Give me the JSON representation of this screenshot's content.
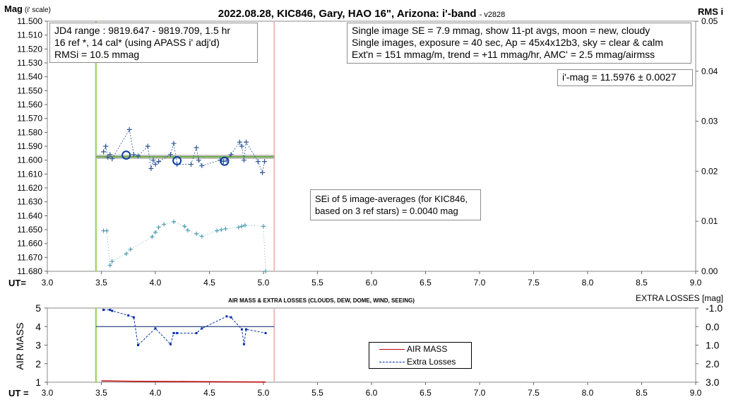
{
  "chart_data": [
    {
      "type": "scatter",
      "title": "2022.08.28, KIC846, Gary, HAO 16\", Arizona: i'-band",
      "title_suffix": "- v2828",
      "ylabel": "Mag",
      "ylabel_suffix": "(i' scale)",
      "y2label": "RMS i",
      "xlabel": "UT=",
      "xlim": [
        3.0,
        9.0
      ],
      "xticks": [
        "3.0",
        "3.5",
        "4.0",
        "4.5",
        "5.0",
        "5.5",
        "6.0",
        "6.5",
        "7.0",
        "7.5",
        "8.0",
        "8.5",
        "9.0"
      ],
      "ylim": [
        11.68,
        11.5
      ],
      "yticks": [
        "11.500",
        "11.510",
        "11.520",
        "11.530",
        "11.540",
        "11.550",
        "11.560",
        "11.570",
        "11.580",
        "11.590",
        "11.600",
        "11.610",
        "11.620",
        "11.630",
        "11.640",
        "11.650",
        "11.660",
        "11.670",
        "11.680"
      ],
      "y2lim": [
        0.0,
        0.05
      ],
      "y2ticks": [
        "0.05",
        "0.04",
        "0.03",
        "0.02",
        "0.01",
        "0.00"
      ],
      "vlines": [
        {
          "x": 3.45,
          "color": "#92d050"
        },
        {
          "x": 5.1,
          "color": "#f4b6b6"
        }
      ],
      "fit_line": {
        "x": [
          3.45,
          5.1
        ],
        "y": 11.5976,
        "color": "#70ad47",
        "shadow": "#c0c0c0"
      },
      "series": [
        {
          "role": "single",
          "color": "#2f5597",
          "points": [
            [
              3.52,
              11.594
            ],
            [
              3.54,
              11.59
            ],
            [
              3.56,
              11.598
            ],
            [
              3.58,
              11.596
            ],
            [
              3.6,
              11.599
            ],
            [
              3.76,
              11.578
            ],
            [
              3.8,
              11.596
            ],
            [
              3.84,
              11.597
            ],
            [
              3.93,
              11.59
            ],
            [
              3.96,
              11.606
            ],
            [
              3.98,
              11.6
            ],
            [
              4.0,
              11.603
            ],
            [
              4.03,
              11.601
            ],
            [
              4.14,
              11.596
            ],
            [
              4.17,
              11.588
            ],
            [
              4.2,
              11.603
            ],
            [
              4.33,
              11.603
            ],
            [
              4.38,
              11.591
            ],
            [
              4.4,
              11.6
            ],
            [
              4.43,
              11.604
            ],
            [
              4.6,
              11.6
            ],
            [
              4.63,
              11.601
            ],
            [
              4.66,
              11.6
            ],
            [
              4.7,
              11.596
            ],
            [
              4.78,
              11.587
            ],
            [
              4.8,
              11.59
            ],
            [
              4.82,
              11.6
            ],
            [
              4.84,
              11.587
            ],
            [
              4.95,
              11.601
            ],
            [
              4.99,
              11.609
            ],
            [
              5.01,
              11.601
            ]
          ]
        },
        {
          "role": "averages",
          "color": "#0b3fa0",
          "points": [
            [
              3.73,
              11.5964
            ],
            [
              4.2,
              11.6004
            ],
            [
              4.64,
              11.6008
            ]
          ]
        },
        {
          "role": "rms",
          "color": "#4f9db2",
          "points": [
            [
              3.52,
              0.0081
            ],
            [
              3.55,
              0.0081
            ],
            [
              3.58,
              0.0012
            ],
            [
              3.6,
              0.002
            ],
            [
              3.73,
              0.0035
            ],
            [
              3.77,
              0.0044
            ],
            [
              3.97,
              0.0069
            ],
            [
              4.0,
              0.0078
            ],
            [
              4.03,
              0.0088
            ],
            [
              4.08,
              0.0094
            ],
            [
              4.17,
              0.0099
            ],
            [
              4.27,
              0.009
            ],
            [
              4.3,
              0.0082
            ],
            [
              4.38,
              0.0075
            ],
            [
              4.43,
              0.007
            ],
            [
              4.57,
              0.0081
            ],
            [
              4.61,
              0.0083
            ],
            [
              4.65,
              0.0085
            ],
            [
              4.77,
              0.0088
            ],
            [
              4.8,
              0.009
            ],
            [
              4.83,
              0.0092
            ],
            [
              5.0,
              0.009
            ],
            [
              5.02,
              0.0
            ]
          ]
        }
      ]
    },
    {
      "type": "line",
      "title": "AIR MASS & EXTRA LOSSES (CLOUDS, DEW, DOME, WIND, SEEING)",
      "ylabel": "AIR MASS",
      "y2label": "EXTRA LOSSES [mag]",
      "xlabel": "UT =",
      "xlim": [
        3.0,
        9.0
      ],
      "xticks": [
        "3.0",
        "3.5",
        "4.0",
        "4.5",
        "5.0",
        "5.5",
        "6.0",
        "6.5",
        "7.0",
        "7.5",
        "8.0",
        "8.5",
        "9.0"
      ],
      "ylim": [
        1,
        5
      ],
      "yticks": [
        "5",
        "4",
        "3",
        "2",
        "1"
      ],
      "y2lim": [
        -1.0,
        3.0
      ],
      "y2ticks": [
        "-1.0",
        "0.0",
        "1.0",
        "2.0",
        "3.0"
      ],
      "series": [
        {
          "name": "AIR MASS",
          "color": "#c00000",
          "x": [
            3.5,
            3.8,
            4.1,
            4.4,
            4.7,
            5.02
          ],
          "y": [
            1.07,
            1.05,
            1.04,
            1.03,
            1.02,
            1.01
          ]
        },
        {
          "name": "Extra Losses",
          "color": "#002da8",
          "x": [
            3.52,
            3.58,
            3.6,
            3.75,
            3.8,
            3.84,
            4.0,
            4.14,
            4.17,
            4.2,
            4.38,
            4.43,
            4.66,
            4.7,
            4.8,
            4.82,
            4.84,
            5.02
          ],
          "y": [
            -0.9,
            -0.9,
            -0.85,
            -0.6,
            -0.5,
            1.0,
            0.1,
            0.95,
            0.35,
            0.35,
            0.35,
            0.1,
            -0.55,
            -0.5,
            0.15,
            0.95,
            0.15,
            0.35
          ]
        }
      ],
      "zero_line": {
        "y2": 0.0,
        "color": "#002060"
      },
      "vlines": [
        {
          "x": 3.45,
          "color": "#92d050"
        },
        {
          "x": 5.1,
          "color": "#f4b6b6"
        }
      ]
    }
  ],
  "annotations": {
    "jd_box": [
      "JD4 range : 9819.647 - 9819.709, 1.5  hr",
      "16 ref *, 14 cal* (using APASS i' adj'd)",
      "RMSi = 10.5 mmag"
    ],
    "info_box": [
      "Single image SE = 7.9 mmag, show 11-pt avgs, moon = new, cloudy",
      "Single images, exposure = 40 sec, Ap = 45x4x12b3, sky = clear & calm",
      "Ext'n = 151 mmag/m, trend = +11 mmag/hr, AMC' = 2.5 mmag/airmss"
    ],
    "mag_box": "i'-mag = 11.5976 ± 0.0027",
    "sei_box": [
      "SEi of 5 image-averages (for KIC846,",
      "based on 3 ref stars) = 0.0040 mag"
    ]
  }
}
